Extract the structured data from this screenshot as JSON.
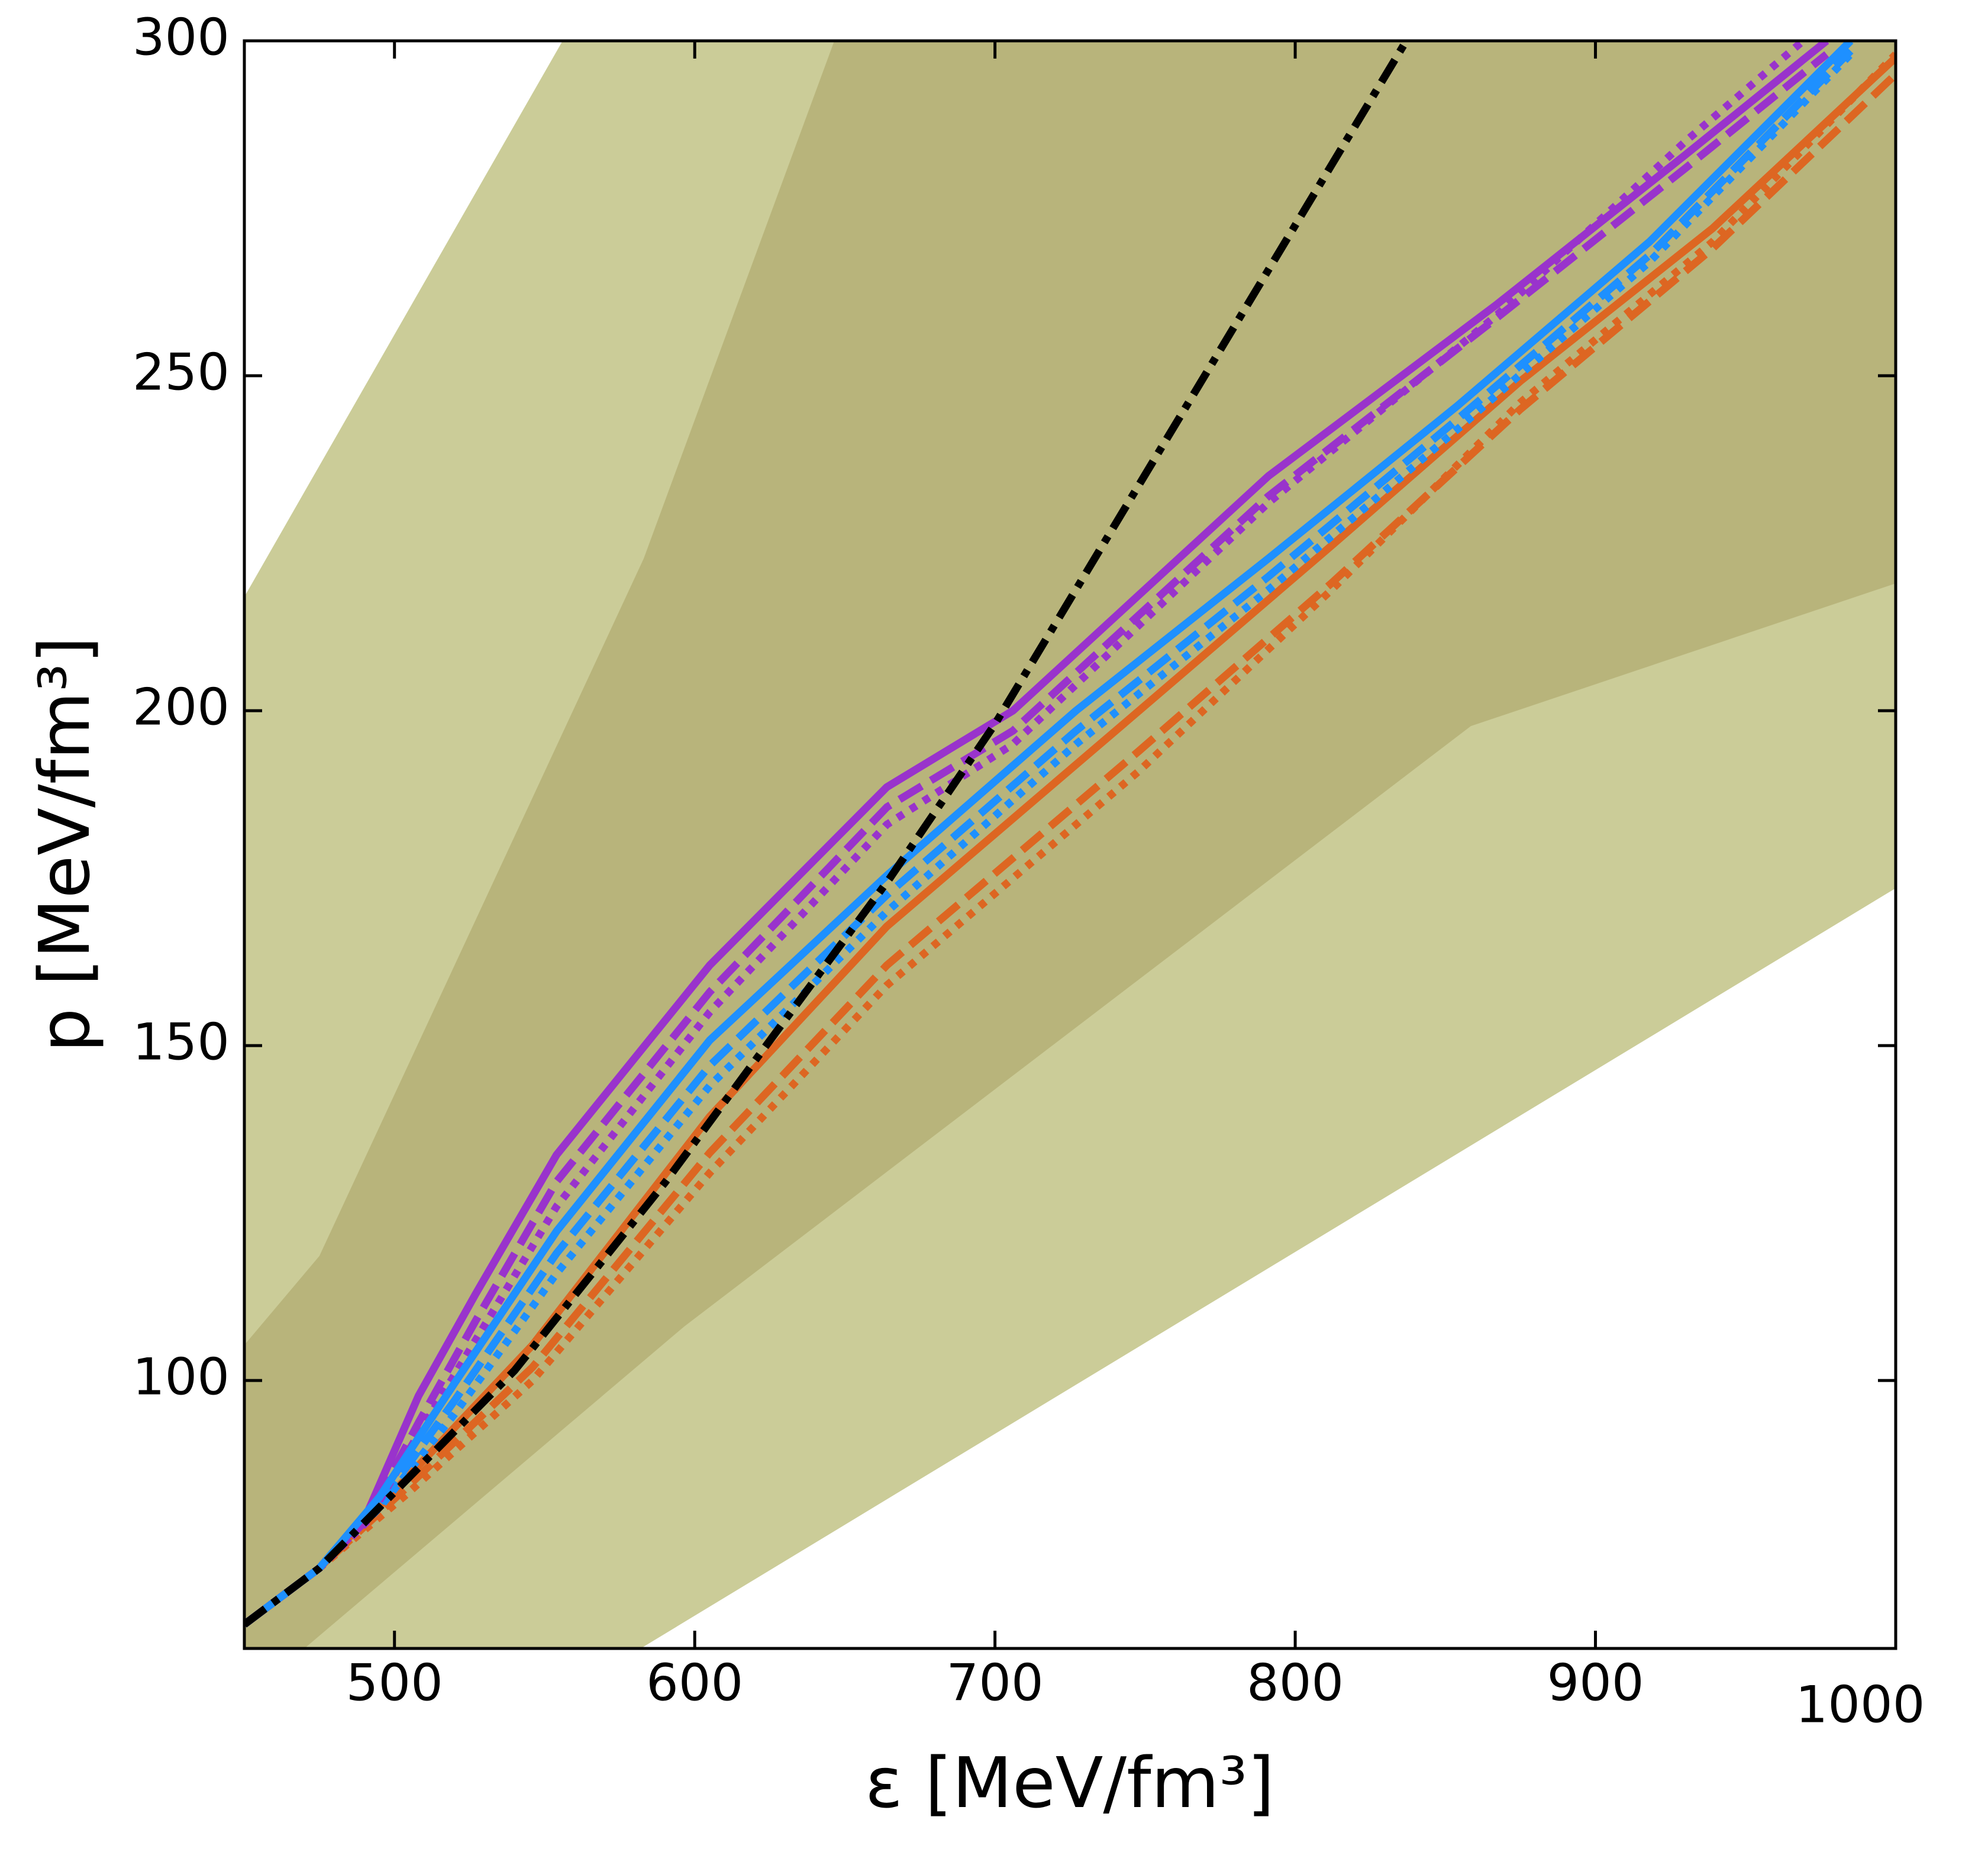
{
  "chart_data": {
    "type": "line",
    "x_label": "ε [MeV/fm³]",
    "y_label": "p [MeV/fm³]",
    "xlim": [
      450,
      1000
    ],
    "ylim": [
      60,
      300
    ],
    "xticks": [
      500,
      600,
      700,
      800,
      900,
      1000
    ],
    "yticks": [
      100,
      150,
      200,
      250,
      300
    ],
    "bands": [
      {
        "color": "#cbcc98",
        "upper": {
          "x": [
            450,
            556,
            1000
          ],
          "y": [
            217,
            300,
            300
          ]
        },
        "lower": {
          "x": [
            450,
            582,
            1000
          ],
          "y": [
            60,
            60,
            173.5
          ]
        }
      },
      {
        "color": "#b8b47b",
        "upper": {
          "x": [
            450,
            475,
            583,
            646.5,
            1000
          ],
          "y": [
            105.3,
            118.6,
            222.7,
            300,
            300
          ]
        },
        "lower": {
          "x": [
            450,
            470,
            596.6,
            858.5,
            1000
          ],
          "y": [
            60,
            60,
            108.1,
            197.7,
            219
          ]
        }
      }
    ],
    "series": [
      {
        "color": "#dd6622",
        "style": "dotted",
        "x": [
          450,
          475,
          504,
          546,
          605,
          664,
          748,
          812,
          875,
          939,
          1000
        ],
        "values": [
          63.6,
          72,
          83,
          100,
          131,
          159,
          191,
          218,
          246,
          270,
          298
        ]
      },
      {
        "color": "#dd6622",
        "style": "dashed",
        "x": [
          450,
          475,
          504,
          546,
          605,
          664,
          748,
          812,
          875,
          939,
          1000
        ],
        "values": [
          63.6,
          72,
          84,
          102,
          134,
          162,
          194,
          219,
          245,
          269,
          295
        ]
      },
      {
        "color": "#dd6622",
        "style": "solid",
        "x": [
          450,
          475,
          504,
          546,
          605,
          664,
          748,
          812,
          875,
          939,
          1000
        ],
        "values": [
          63.6,
          72,
          85.4,
          105.3,
          139.4,
          167.8,
          200,
          224.6,
          249.2,
          272,
          297.5
        ]
      },
      {
        "color": "#1e90ff",
        "style": "dotted",
        "x": [
          450,
          475,
          495,
          520,
          554,
          605,
          664,
          727,
          791,
          854,
          918,
          985
        ],
        "values": [
          63.6,
          72,
          81,
          95,
          116,
          144,
          170,
          195,
          218,
          242,
          267,
          298
        ]
      },
      {
        "color": "#1e90ff",
        "style": "dashed",
        "x": [
          450,
          475,
          495,
          520,
          554,
          605,
          664,
          727,
          791,
          854,
          918,
          985
        ],
        "values": [
          63.6,
          72,
          81.5,
          97,
          119,
          147,
          172.5,
          197,
          220,
          243.5,
          268,
          298.5
        ]
      },
      {
        "color": "#9933cc",
        "style": "dotted",
        "x": [
          450,
          475,
          491,
          508,
          527,
          554,
          605,
          664,
          706,
          791,
          867,
          930,
          977
        ],
        "values": [
          63.6,
          72,
          79,
          92,
          106,
          126,
          155,
          183,
          195,
          231,
          259,
          285,
          303
        ]
      },
      {
        "color": "#9933cc",
        "style": "dashed",
        "x": [
          450,
          475,
          491,
          508,
          527,
          554,
          605,
          664,
          706,
          791,
          867,
          930,
          977
        ],
        "values": [
          63.6,
          72,
          79.3,
          93.7,
          108.9,
          129.7,
          158,
          185.6,
          197,
          232,
          258.6,
          281,
          298
        ]
      },
      {
        "color": "#9933cc",
        "style": "solid",
        "x": [
          450,
          475,
          491,
          508,
          527,
          554,
          605,
          664,
          706,
          791,
          867,
          930,
          977
        ],
        "values": [
          63.6,
          72,
          80.3,
          97.7,
          112.9,
          133.7,
          162,
          188.6,
          200,
          235,
          260.6,
          283,
          300
        ]
      },
      {
        "color": "#1e90ff",
        "style": "solid",
        "x": [
          450,
          475,
          495,
          520,
          554,
          605,
          664,
          727,
          791,
          854,
          918,
          985
        ],
        "values": [
          63.6,
          72,
          82.6,
          99.6,
          122.3,
          150.8,
          175.4,
          200,
          222.7,
          245.5,
          270,
          300
        ]
      },
      {
        "color": "#000000",
        "style": "dashdot",
        "x": [
          450,
          475,
          540,
          590,
          665,
          700,
          837
        ],
        "values": [
          63.6,
          72,
          101.5,
          129.5,
          175,
          198,
          300
        ]
      }
    ]
  }
}
